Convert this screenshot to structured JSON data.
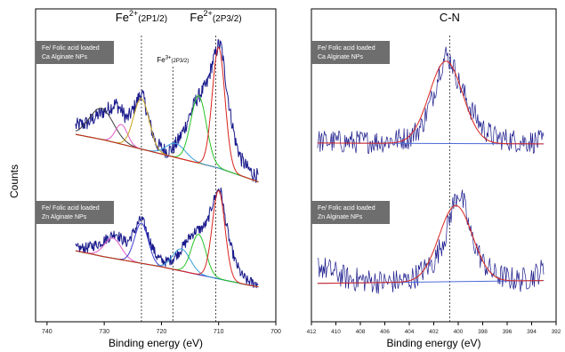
{
  "chart_data": [
    {
      "type": "line",
      "panel": "left",
      "xlabel": "Binding energy (eV)",
      "ylabel": "Counts",
      "xlim": [
        742,
        700
      ],
      "x_reversed": true,
      "xticks": [
        740,
        730,
        720,
        710,
        700
      ],
      "grid": false,
      "reference_lines": [
        {
          "label_main": "Fe",
          "label_sup": "2+",
          "label_sub": "(2P1/2)",
          "x": 723.5
        },
        {
          "label_main": "Fe",
          "label_sup": "3+",
          "label_sub": "(2P3/2)",
          "x": 718.0
        },
        {
          "label_main": "Fe",
          "label_sup": "2+",
          "label_sub": "(2P3/2)",
          "x": 710.5
        }
      ],
      "spectra": [
        {
          "label_lines": [
            "Fe/ Folic acid loaded",
            "Ca Alginate NPs"
          ],
          "raw_points": [
            [
              735,
              0.42
            ],
            [
              733,
              0.44
            ],
            [
              731,
              0.5
            ],
            [
              729,
              0.55
            ],
            [
              728,
              0.58
            ],
            [
              727,
              0.53
            ],
            [
              726,
              0.47
            ],
            [
              725,
              0.53
            ],
            [
              724,
              0.62
            ],
            [
              723.5,
              0.66
            ],
            [
              723,
              0.6
            ],
            [
              722,
              0.43
            ],
            [
              721,
              0.3
            ],
            [
              720,
              0.26
            ],
            [
              719,
              0.24
            ],
            [
              718,
              0.26
            ],
            [
              717,
              0.32
            ],
            [
              716,
              0.4
            ],
            [
              715,
              0.5
            ],
            [
              714,
              0.6
            ],
            [
              713,
              0.66
            ],
            [
              712,
              0.72
            ],
            [
              711,
              0.88
            ],
            [
              710,
              1.0
            ],
            [
              709.5,
              0.98
            ],
            [
              709,
              0.82
            ],
            [
              708,
              0.52
            ],
            [
              707,
              0.3
            ],
            [
              706,
              0.18
            ],
            [
              705,
              0.12
            ],
            [
              704,
              0.08
            ],
            [
              703,
              0.06
            ]
          ],
          "background": [
            [
              735,
              0.36
            ],
            [
              730,
              0.32
            ],
            [
              725,
              0.27
            ],
            [
              720,
              0.22
            ],
            [
              715,
              0.17
            ],
            [
              710,
              0.12
            ],
            [
              705,
              0.05
            ],
            [
              703,
              0.02
            ]
          ],
          "components": [
            {
              "center": 730.5,
              "fwhm": 5.0,
              "height": 0.22,
              "color": "#3d3d3d"
            },
            {
              "center": 727.0,
              "fwhm": 2.5,
              "height": 0.14,
              "color": "#e05ac9"
            },
            {
              "center": 723.5,
              "fwhm": 3.2,
              "height": 0.36,
              "color": "#c8a21a"
            },
            {
              "center": 717.5,
              "fwhm": 4.0,
              "height": 0.1,
              "color": "#35a0d8"
            },
            {
              "center": 713.5,
              "fwhm": 3.2,
              "height": 0.48,
              "color": "#27c227"
            },
            {
              "center": 710.0,
              "fwhm": 2.6,
              "height": 0.86,
              "color": "#d9241e"
            }
          ]
        },
        {
          "label_lines": [
            "Fe/ Folic acid loaded",
            "Zn Alginate NPs"
          ],
          "raw_points": [
            [
              735,
              0.4
            ],
            [
              733,
              0.41
            ],
            [
              731,
              0.45
            ],
            [
              729,
              0.52
            ],
            [
              728,
              0.56
            ],
            [
              727,
              0.5
            ],
            [
              726,
              0.46
            ],
            [
              725,
              0.55
            ],
            [
              724,
              0.66
            ],
            [
              723.5,
              0.7
            ],
            [
              723,
              0.64
            ],
            [
              722,
              0.48
            ],
            [
              721,
              0.34
            ],
            [
              720,
              0.28
            ],
            [
              719,
              0.27
            ],
            [
              718,
              0.3
            ],
            [
              717,
              0.36
            ],
            [
              716,
              0.44
            ],
            [
              715,
              0.52
            ],
            [
              714,
              0.58
            ],
            [
              713,
              0.6
            ],
            [
              712,
              0.66
            ],
            [
              711,
              0.86
            ],
            [
              710,
              1.0
            ],
            [
              709.5,
              0.95
            ],
            [
              709,
              0.75
            ],
            [
              708,
              0.45
            ],
            [
              707,
              0.26
            ],
            [
              706,
              0.14
            ],
            [
              705,
              0.08
            ],
            [
              704,
              0.06
            ],
            [
              703,
              0.05
            ]
          ],
          "background": [
            [
              735,
              0.38
            ],
            [
              730,
              0.32
            ],
            [
              725,
              0.27
            ],
            [
              720,
              0.22
            ],
            [
              715,
              0.16
            ],
            [
              710,
              0.1
            ],
            [
              705,
              0.04
            ],
            [
              703,
              0.02
            ]
          ],
          "components": [
            {
              "center": 728.5,
              "fwhm": 3.5,
              "height": 0.2,
              "color": "#e05ac9"
            },
            {
              "center": 723.5,
              "fwhm": 2.8,
              "height": 0.4,
              "color": "#3c3cd0"
            },
            {
              "center": 716.5,
              "fwhm": 3.6,
              "height": 0.22,
              "color": "#35a0d8"
            },
            {
              "center": 713.5,
              "fwhm": 3.0,
              "height": 0.4,
              "color": "#27c227"
            },
            {
              "center": 710.0,
              "fwhm": 2.6,
              "height": 0.88,
              "color": "#d9241e"
            }
          ]
        }
      ]
    },
    {
      "type": "line",
      "panel": "right",
      "xlabel": "Binding energy (eV)",
      "ylabel": "",
      "xlim": [
        412,
        392
      ],
      "x_reversed": true,
      "xticks": [
        412,
        410,
        408,
        406,
        404,
        402,
        400,
        398,
        396,
        394,
        392
      ],
      "grid": false,
      "reference_lines": [
        {
          "label_main": "C-N",
          "label_sup": "",
          "label_sub": "",
          "x": 400.7
        }
      ],
      "spectra": [
        {
          "label_lines": [
            "Fe/ Folic acid loaded",
            "Ca Alginate NPs"
          ],
          "raw_points": [
            [
              411.5,
              0.06
            ],
            [
              409,
              0.05
            ],
            [
              406,
              0.06
            ],
            [
              404,
              0.1
            ],
            [
              403,
              0.22
            ],
            [
              402,
              0.58
            ],
            [
              401.5,
              0.85
            ],
            [
              401,
              1.0
            ],
            [
              400.5,
              0.92
            ],
            [
              400,
              0.72
            ],
            [
              399,
              0.42
            ],
            [
              398,
              0.2
            ],
            [
              397,
              0.1
            ],
            [
              395,
              0.06
            ],
            [
              393,
              0.05
            ]
          ],
          "background": [
            [
              411.5,
              0.04
            ],
            [
              393,
              0.03
            ]
          ],
          "components": [
            {
              "center": 401.0,
              "fwhm": 3.2,
              "height": 0.9,
              "color": "#d9241e"
            }
          ]
        },
        {
          "label_lines": [
            "Fe/ Folic acid loaded",
            "Zn Alginate NPs"
          ],
          "raw_points": [
            [
              411.5,
              0.22
            ],
            [
              409,
              0.08
            ],
            [
              406,
              0.04
            ],
            [
              404,
              0.06
            ],
            [
              402,
              0.25
            ],
            [
              401,
              0.55
            ],
            [
              400.5,
              0.82
            ],
            [
              400,
              1.0
            ],
            [
              399.5,
              0.85
            ],
            [
              399,
              0.55
            ],
            [
              398,
              0.25
            ],
            [
              397,
              0.12
            ],
            [
              395,
              0.06
            ],
            [
              394,
              0.1
            ],
            [
              393,
              0.18
            ]
          ],
          "background": [
            [
              411.5,
              0.03
            ],
            [
              393,
              0.06
            ]
          ],
          "components": [
            {
              "center": 400.2,
              "fwhm": 3.2,
              "height": 0.8,
              "color": "#d9241e"
            }
          ]
        }
      ]
    }
  ]
}
